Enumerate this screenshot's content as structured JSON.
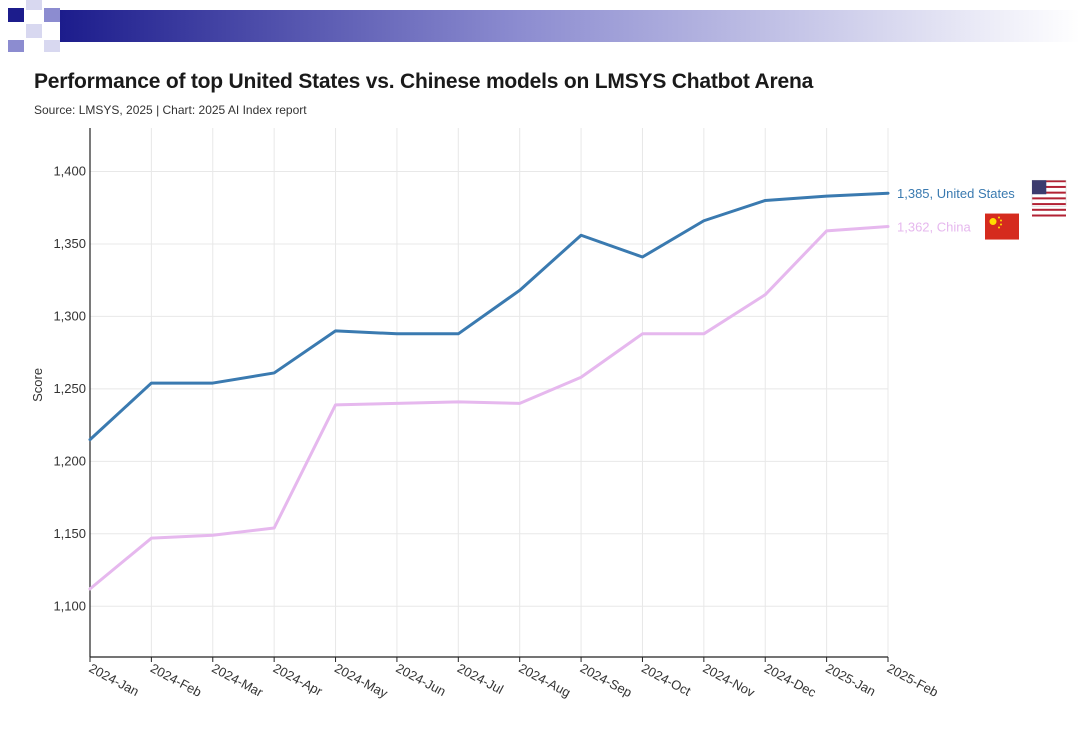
{
  "header": {
    "colors": {
      "dark": "#1c1c8c",
      "mid": "#8c8cd0",
      "light": "#d8d8f0"
    }
  },
  "chart_data": {
    "type": "line",
    "title": "Performance of top United States vs. Chinese models on LMSYS Chatbot Arena",
    "subtitle": "Source: LMSYS, 2025 | Chart: 2025 AI Index report",
    "xlabel": "",
    "ylabel": "Score",
    "ylim": [
      1065,
      1430
    ],
    "yticks": [
      1100,
      1150,
      1200,
      1250,
      1300,
      1350,
      1400
    ],
    "ytick_labels": [
      "1,100",
      "1,150",
      "1,200",
      "1,250",
      "1,300",
      "1,350",
      "1,400"
    ],
    "grid": true,
    "categories": [
      "2024-Jan",
      "2024-Feb",
      "2024-Mar",
      "2024-Apr",
      "2024-May",
      "2024-Jun",
      "2024-Jul",
      "2024-Aug",
      "2024-Sep",
      "2024-Oct",
      "2024-Nov",
      "2024-Dec",
      "2025-Jan",
      "2025-Feb"
    ],
    "series": [
      {
        "name": "United States",
        "color": "#3a7ab0",
        "end_label": "1,385, United States",
        "flag": "us-flag",
        "values": [
          1215,
          1254,
          1254,
          1261,
          1290,
          1288,
          1288,
          1318,
          1356,
          1341,
          1366,
          1380,
          1383,
          1385
        ]
      },
      {
        "name": "China",
        "color": "#e6b8ee",
        "end_label": "1,362, China",
        "flag": "china-flag",
        "values": [
          1112,
          1147,
          1149,
          1154,
          1239,
          1240,
          1241,
          1240,
          1258,
          1288,
          1288,
          1315,
          1359,
          1362
        ]
      }
    ]
  }
}
